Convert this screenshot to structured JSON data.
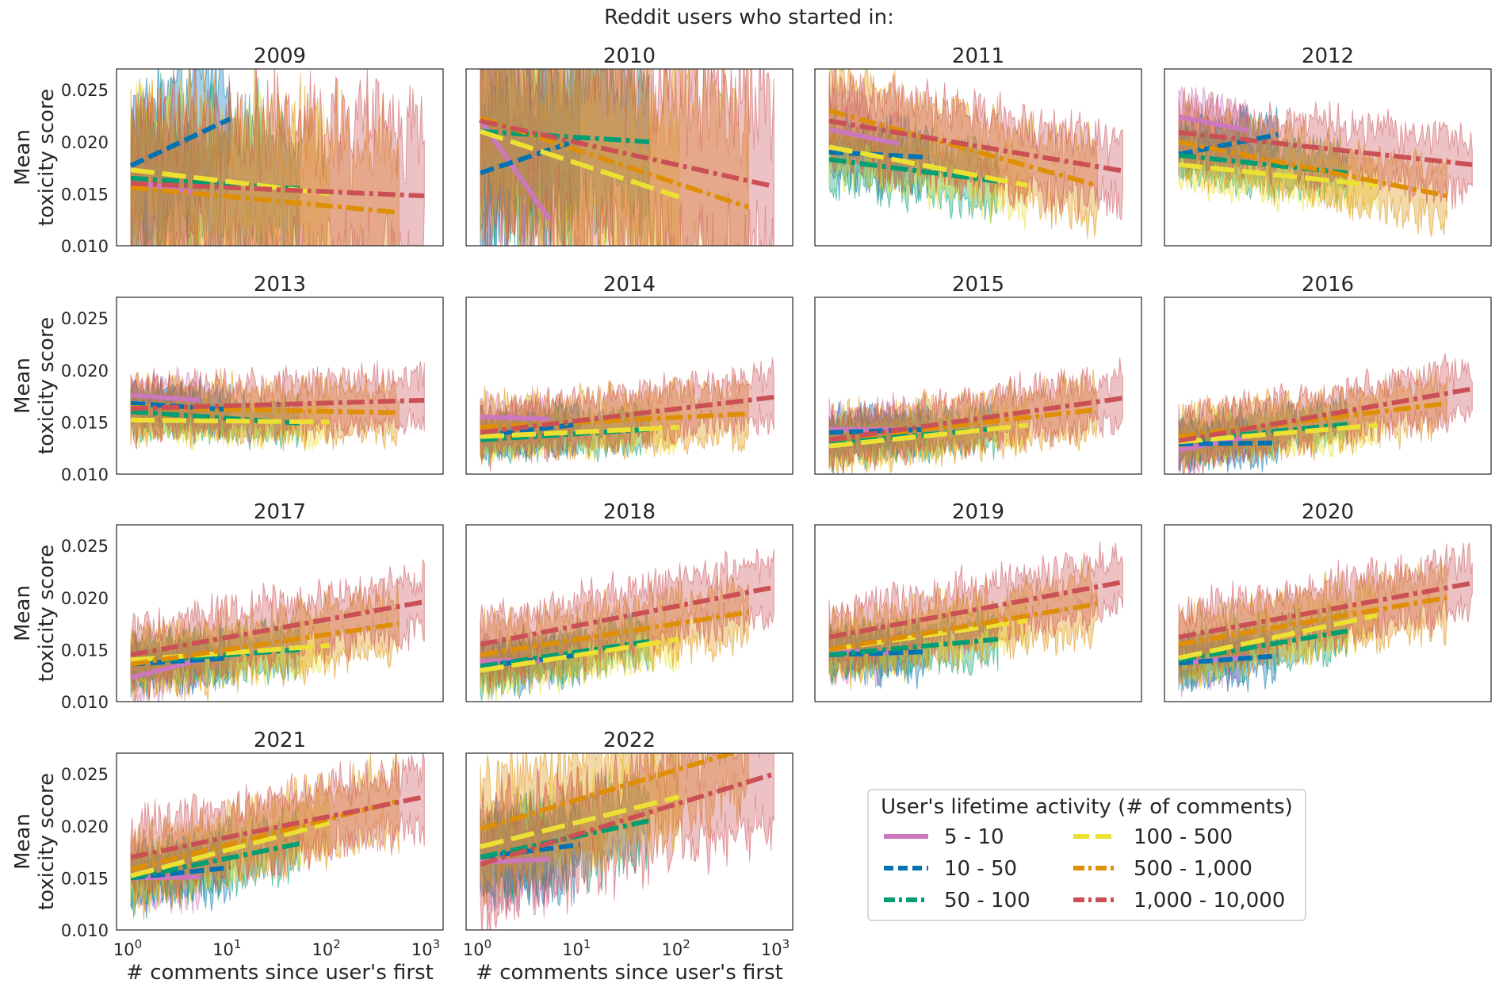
{
  "figure": {
    "suptitle": "Reddit users who started in:",
    "x_label": "# comments since user's first",
    "y_label_line1": "Mean",
    "y_label_line2": "toxicity score"
  },
  "chart_data": {
    "type": "line",
    "x_scale": "log",
    "xlim": [
      1,
      1000
    ],
    "ylim": [
      0.01,
      0.027
    ],
    "y_ticks": [
      "0.010",
      "0.015",
      "0.020",
      "0.025"
    ],
    "x_ticks": [
      {
        "base": "10",
        "exp": "0"
      },
      {
        "base": "10",
        "exp": "1"
      },
      {
        "base": "10",
        "exp": "2"
      },
      {
        "base": "10",
        "exp": "3"
      }
    ],
    "legend": {
      "title": "User's lifetime activity (# of comments)",
      "position": "lower-right"
    },
    "series": [
      {
        "name": "5 - 10",
        "color": "#cc78bc",
        "dash": "solid",
        "x_max": 5
      },
      {
        "name": "10 - 50",
        "color": "#0173b2",
        "dash": "dashed",
        "x_max": 10
      },
      {
        "name": "50 - 100",
        "color": "#029e73",
        "dash": "dashdot",
        "x_max": 50
      },
      {
        "name": "100 - 500",
        "color": "#ece133",
        "dash": "longdash",
        "x_max": 100
      },
      {
        "name": "500 - 1,000",
        "color": "#de8f05",
        "dash": "dashdot",
        "x_max": 500
      },
      {
        "name": "1,000 - 10,000",
        "color": "#ca5055",
        "dash": "dashdot",
        "x_max": 900
      }
    ],
    "panels": [
      {
        "year": "2009",
        "noise": 0.01,
        "fits": [
          [
            0.0162,
            0.015
          ],
          [
            0.0177,
            0.0222
          ],
          [
            0.0165,
            0.0155
          ],
          [
            0.0173,
            0.015
          ],
          [
            0.0156,
            0.0132
          ],
          [
            0.016,
            0.0148
          ]
        ]
      },
      {
        "year": "2010",
        "noise": 0.012,
        "fits": [
          [
            0.0221,
            0.0125
          ],
          [
            0.017,
            0.0202
          ],
          [
            0.021,
            0.02
          ],
          [
            0.021,
            0.0147
          ],
          [
            0.0223,
            0.0137
          ],
          [
            0.022,
            0.0157
          ]
        ]
      },
      {
        "year": "2011",
        "noise": 0.0045,
        "fits": [
          [
            0.0212,
            0.0198
          ],
          [
            0.019,
            0.0185
          ],
          [
            0.0183,
            0.0162
          ],
          [
            0.0195,
            0.0158
          ],
          [
            0.023,
            0.0158
          ],
          [
            0.022,
            0.0172
          ]
        ]
      },
      {
        "year": "2012",
        "noise": 0.0035,
        "fits": [
          [
            0.0224,
            0.0211
          ],
          [
            0.0188,
            0.0207
          ],
          [
            0.0187,
            0.017
          ],
          [
            0.0178,
            0.0158
          ],
          [
            0.02,
            0.0148
          ],
          [
            0.0209,
            0.0178
          ]
        ]
      },
      {
        "year": "2013",
        "noise": 0.003,
        "fits": [
          [
            0.0176,
            0.0171
          ],
          [
            0.0168,
            0.0162
          ],
          [
            0.016,
            0.0149
          ],
          [
            0.0152,
            0.015
          ],
          [
            0.0164,
            0.0159
          ],
          [
            0.0163,
            0.0171
          ]
        ]
      },
      {
        "year": "2014",
        "noise": 0.003,
        "fits": [
          [
            0.0155,
            0.0153
          ],
          [
            0.0137,
            0.0148
          ],
          [
            0.0133,
            0.0143
          ],
          [
            0.0136,
            0.0145
          ],
          [
            0.0145,
            0.0158
          ],
          [
            0.014,
            0.0174
          ]
        ]
      },
      {
        "year": "2015",
        "noise": 0.003,
        "fits": [
          [
            0.0143,
            0.0143
          ],
          [
            0.014,
            0.0143
          ],
          [
            0.013,
            0.0144
          ],
          [
            0.0127,
            0.0147
          ],
          [
            0.0133,
            0.0162
          ],
          [
            0.0133,
            0.0173
          ]
        ]
      },
      {
        "year": "2016",
        "noise": 0.003,
        "fits": [
          [
            0.0123,
            0.0136
          ],
          [
            0.0129,
            0.013
          ],
          [
            0.0132,
            0.0148
          ],
          [
            0.0131,
            0.0147
          ],
          [
            0.0136,
            0.0168
          ],
          [
            0.0132,
            0.0182
          ]
        ]
      },
      {
        "year": "2017",
        "noise": 0.0035,
        "fits": [
          [
            0.0123,
            0.014
          ],
          [
            0.0136,
            0.0142
          ],
          [
            0.0138,
            0.015
          ],
          [
            0.014,
            0.0154
          ],
          [
            0.0136,
            0.0175
          ],
          [
            0.0145,
            0.0196
          ]
        ]
      },
      {
        "year": "2018",
        "noise": 0.0035,
        "fits": [
          [
            0.0139,
            0.014
          ],
          [
            0.0134,
            0.0145
          ],
          [
            0.0134,
            0.0158
          ],
          [
            0.013,
            0.016
          ],
          [
            0.0145,
            0.0186
          ],
          [
            0.0155,
            0.021
          ]
        ]
      },
      {
        "year": "2019",
        "noise": 0.0035,
        "fits": [
          [
            0.0149,
            0.0147
          ],
          [
            0.0145,
            0.0148
          ],
          [
            0.0145,
            0.016
          ],
          [
            0.015,
            0.0178
          ],
          [
            0.015,
            0.0194
          ],
          [
            0.0162,
            0.0215
          ]
        ]
      },
      {
        "year": "2020",
        "noise": 0.0035,
        "fits": [
          [
            0.0137,
            0.0143
          ],
          [
            0.0137,
            0.0144
          ],
          [
            0.014,
            0.0168
          ],
          [
            0.0142,
            0.0183
          ],
          [
            0.0155,
            0.02
          ],
          [
            0.0162,
            0.0214
          ]
        ]
      },
      {
        "year": "2021",
        "noise": 0.004,
        "fits": [
          [
            0.015,
            0.0151
          ],
          [
            0.015,
            0.016
          ],
          [
            0.015,
            0.0183
          ],
          [
            0.0152,
            0.0203
          ],
          [
            0.0158,
            0.0224
          ],
          [
            0.017,
            0.0228
          ]
        ]
      },
      {
        "year": "2022",
        "noise": 0.006,
        "fits": [
          [
            0.0165,
            0.0168
          ],
          [
            0.017,
            0.0182
          ],
          [
            0.017,
            0.0205
          ],
          [
            0.018,
            0.0228
          ],
          [
            0.0197,
            0.0275
          ],
          [
            0.0163,
            0.025
          ]
        ]
      }
    ]
  }
}
